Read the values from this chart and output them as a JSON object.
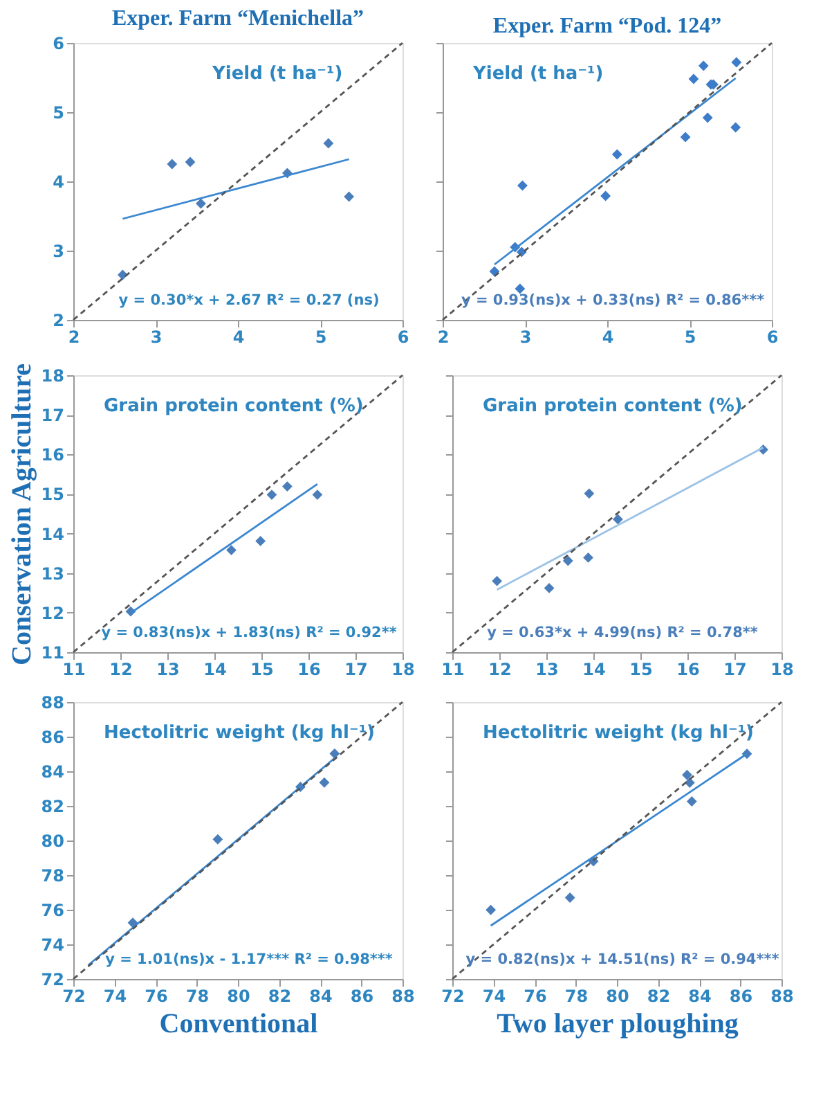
{
  "chart_data": [
    {
      "type": "scatter",
      "title": "Exper. Farm “Menichella”",
      "xlim": [
        2,
        6
      ],
      "ylim": [
        2,
        6
      ],
      "xticks": [
        2,
        3,
        4,
        5,
        6
      ],
      "yticks": [
        2,
        3,
        4,
        5,
        6
      ],
      "grid": false,
      "annotations": [
        "Yield (t ha⁻¹)",
        "y = 0.30*x  +  2.67    R² = 0.27 (ns)"
      ],
      "series": [
        {
          "color": "#4a7ebb",
          "marker": "diamond",
          "x": [
            2.6,
            3.2,
            3.42,
            3.55,
            4.6,
            5.1,
            5.35
          ],
          "values": [
            2.65,
            4.25,
            4.28,
            3.68,
            4.12,
            4.55,
            3.78
          ]
        },
        {
          "type": "line",
          "color": "#3a87d0",
          "line_style": "solid",
          "x": [
            2.6,
            5.35
          ],
          "values": [
            3.46,
            4.32
          ]
        },
        {
          "type": "line",
          "color": "#555555",
          "line_style": "dashed",
          "x": [
            2,
            6
          ],
          "values": [
            2,
            6
          ]
        }
      ]
    },
    {
      "type": "scatter",
      "title": "Exper. Farm “Pod. 124”",
      "xlim": [
        2,
        6
      ],
      "ylim": [
        2,
        6
      ],
      "xticks": [
        2,
        3,
        4,
        5,
        6
      ],
      "yticks": [
        2,
        3,
        4,
        5,
        6
      ],
      "tick_labels": "x",
      "grid": false,
      "annotations": [
        "Yield (t ha⁻¹)",
        "y = 0.93(ns)x  +  0.33(ns)         R² = 0.86***"
      ],
      "series": [
        {
          "color": "#3d7cc9",
          "marker": "diamond",
          "x": [
            2.63,
            2.88,
            2.96,
            2.94,
            2.97,
            3.98,
            4.12,
            4.95,
            5.05,
            5.17,
            5.26,
            5.29,
            5.22,
            5.56,
            5.57
          ],
          "values": [
            2.7,
            3.05,
            2.98,
            2.45,
            3.94,
            3.79,
            4.39,
            4.64,
            5.48,
            5.67,
            5.4,
            5.4,
            4.92,
            4.78,
            5.72
          ]
        },
        {
          "type": "line",
          "color": "#3a87d0",
          "line_style": "solid",
          "x": [
            2.63,
            5.56
          ],
          "values": [
            2.8,
            5.49
          ]
        },
        {
          "type": "line",
          "color": "#555555",
          "line_style": "dashed",
          "x": [
            2,
            6
          ],
          "values": [
            2,
            6
          ]
        }
      ]
    },
    {
      "type": "scatter",
      "ylabel": "Conservation Agriculture",
      "xlim": [
        11,
        18
      ],
      "ylim": [
        11,
        18
      ],
      "xticks": [
        11,
        12,
        13,
        14,
        15,
        16,
        17,
        18
      ],
      "yticks": [
        11,
        12,
        13,
        14,
        15,
        16,
        17,
        18
      ],
      "grid": false,
      "annotations": [
        "Grain protein content (%)",
        "y = 0.83(ns)x  +  1.83(ns)   R² = 0.92**"
      ],
      "series": [
        {
          "color": "#4a7ebb",
          "marker": "diamond",
          "x": [
            12.22,
            14.36,
            14.98,
            15.22,
            15.55,
            16.19
          ],
          "values": [
            12.03,
            13.58,
            13.81,
            14.98,
            15.19,
            14.98
          ]
        },
        {
          "type": "line",
          "color": "#3a87d0",
          "line_style": "solid",
          "x": [
            12.22,
            16.19
          ],
          "values": [
            11.99,
            15.25
          ]
        },
        {
          "type": "line",
          "color": "#555555",
          "line_style": "dashed",
          "x": [
            11,
            18
          ],
          "values": [
            11,
            18
          ]
        }
      ]
    },
    {
      "type": "scatter",
      "xlim": [
        11,
        18
      ],
      "ylim": [
        11,
        18
      ],
      "xticks": [
        11,
        12,
        13,
        14,
        15,
        16,
        17,
        18
      ],
      "yticks": [
        11,
        12,
        13,
        14,
        15,
        16,
        17,
        18
      ],
      "tick_labels": "x",
      "grid": false,
      "annotations": [
        "Grain protein content (%)",
        "y = 0.63*x  + 4.99(ns)  R² = 0.78**"
      ],
      "series": [
        {
          "color": "#4a7ebb",
          "marker": "diamond",
          "x": [
            11.95,
            13.06,
            13.46,
            13.89,
            13.91,
            14.52,
            17.61
          ],
          "values": [
            12.8,
            12.62,
            13.31,
            13.39,
            15.01,
            14.36,
            16.12
          ]
        },
        {
          "type": "line",
          "color": "#9cc3e6",
          "line_style": "solid",
          "x": [
            11.95,
            17.61
          ],
          "values": [
            12.58,
            16.17
          ]
        },
        {
          "type": "line",
          "color": "#555555",
          "line_style": "dashed",
          "x": [
            11,
            18
          ],
          "values": [
            11,
            18
          ]
        }
      ]
    },
    {
      "type": "scatter",
      "xlabel": "Conventional",
      "xlim": [
        72,
        88
      ],
      "ylim": [
        72,
        88
      ],
      "xticks": [
        72,
        74,
        76,
        78,
        80,
        82,
        84,
        86,
        88
      ],
      "yticks": [
        72,
        74,
        76,
        78,
        80,
        82,
        84,
        86,
        88
      ],
      "grid": false,
      "annotations": [
        "Hectolitric weight (kg hl⁻¹)",
        "y = 1.01(ns)x  -  1.17***   R² = 0.98***"
      ],
      "series": [
        {
          "color": "#4a7ebb",
          "marker": "diamond",
          "x": [
            74.89,
            79.02,
            83.04,
            84.2,
            84.7
          ],
          "values": [
            75.25,
            80.07,
            83.1,
            83.35,
            85.02
          ]
        },
        {
          "type": "line",
          "color": "#3a87d0",
          "line_style": "solid",
          "x": [
            72.72,
            84.78
          ],
          "values": [
            72.79,
            84.84
          ]
        },
        {
          "type": "line",
          "color": "#555555",
          "line_style": "dashed",
          "x": [
            72,
            88
          ],
          "values": [
            72,
            88
          ]
        }
      ]
    },
    {
      "type": "scatter",
      "xlabel": "Two layer ploughing",
      "xlim": [
        72,
        88
      ],
      "ylim": [
        72,
        88
      ],
      "xticks": [
        72,
        74,
        76,
        78,
        80,
        82,
        84,
        86,
        88
      ],
      "yticks": [
        72,
        74,
        76,
        78,
        80,
        82,
        84,
        86,
        88
      ],
      "tick_labels": "x",
      "grid": false,
      "annotations": [
        "Hectolitric weight (kg hl⁻¹)",
        "y = 0.82(ns)x  +  14.51(ns)   R² = 0.94***"
      ],
      "series": [
        {
          "color": "#4a7ebb",
          "marker": "diamond",
          "x": [
            73.87,
            77.72,
            78.86,
            83.41,
            83.54,
            83.64,
            86.32
          ],
          "values": [
            75.99,
            76.7,
            78.8,
            83.79,
            83.34,
            82.26,
            85.01
          ]
        },
        {
          "type": "line",
          "color": "#3a87d0",
          "line_style": "solid",
          "x": [
            73.87,
            86.32
          ],
          "values": [
            75.08,
            85.01
          ]
        },
        {
          "type": "line",
          "color": "#555555",
          "line_style": "dashed",
          "x": [
            72,
            88
          ],
          "values": [
            72,
            88
          ]
        }
      ]
    }
  ]
}
